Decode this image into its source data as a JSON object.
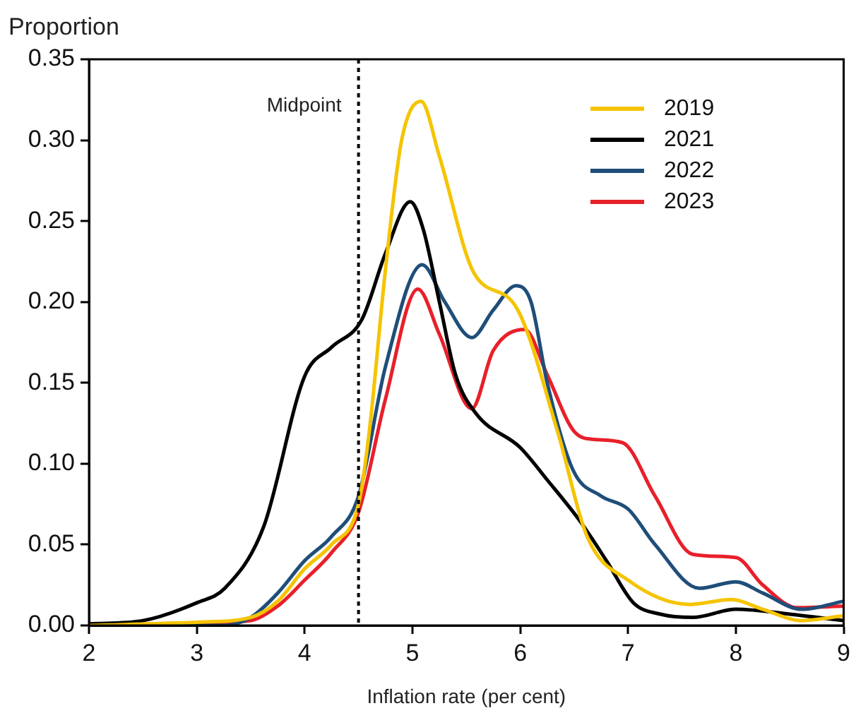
{
  "chart_data": {
    "type": "line",
    "ylabel": "Proportion",
    "xlabel": "Inflation rate (per cent)",
    "xlim": [
      2,
      9
    ],
    "xticks": [
      2,
      3,
      4,
      5,
      6,
      7,
      8,
      9
    ],
    "ylim": [
      0,
      0.35
    ],
    "yticks": [
      {
        "value": 0,
        "label": "0.00"
      },
      {
        "value": 0.05,
        "label": "0.05"
      },
      {
        "value": 0.1,
        "label": "0.10"
      },
      {
        "value": 0.15,
        "label": "0.15"
      },
      {
        "value": 0.2,
        "label": "0.20"
      },
      {
        "value": 0.25,
        "label": "0.25"
      },
      {
        "value": 0.3,
        "label": "0.30"
      },
      {
        "value": 0.35,
        "label": "0.35"
      }
    ],
    "grid": false,
    "legend": "top right",
    "marker": "none",
    "line_style": "solid",
    "ref_lines": [
      {
        "axis": "x",
        "value": 4.5,
        "label": "Midpoint",
        "color": "#000000",
        "line_style": "dotted"
      }
    ],
    "series": [
      {
        "name": "2019",
        "color": "#f5c400",
        "x": [
          2,
          3,
          3.5,
          3.75,
          4,
          4.25,
          4.5,
          4.6,
          4.75,
          4.9,
          5.08,
          5.25,
          5.57,
          5.96,
          6.35,
          6.62,
          7,
          7.57,
          7.96,
          8.25,
          8.61,
          9
        ],
        "values": [
          0,
          0.002,
          0.005,
          0.015,
          0.035,
          0.05,
          0.075,
          0.12,
          0.22,
          0.3,
          0.324,
          0.29,
          0.218,
          0.197,
          0.119,
          0.055,
          0.028,
          0.013,
          0.016,
          0.01,
          0.003,
          0.006
        ]
      },
      {
        "name": "2021",
        "color": "#000000",
        "x": [
          2,
          2.5,
          3,
          3.26,
          3.62,
          4,
          4.25,
          4.53,
          4.75,
          4.98,
          5.1,
          5.25,
          5.4,
          5.59,
          6,
          6.25,
          6.56,
          6.8,
          7.05,
          7.3,
          7.6,
          8,
          8.5,
          9
        ],
        "values": [
          0.001,
          0.003,
          0.014,
          0.023,
          0.061,
          0.154,
          0.172,
          0.189,
          0.23,
          0.262,
          0.245,
          0.2,
          0.155,
          0.131,
          0.11,
          0.09,
          0.064,
          0.04,
          0.014,
          0.007,
          0.005,
          0.01,
          0.007,
          0.003
        ]
      },
      {
        "name": "2022",
        "color": "#1f4e79",
        "x": [
          2,
          3.25,
          3.5,
          3.75,
          4,
          4.25,
          4.5,
          4.75,
          5.09,
          5.3,
          5.55,
          5.75,
          5.96,
          6.1,
          6.25,
          6.49,
          6.75,
          7,
          7.25,
          7.66,
          8,
          8.25,
          8.61,
          9
        ],
        "values": [
          0,
          0,
          0.005,
          0.02,
          0.04,
          0.055,
          0.08,
          0.16,
          0.223,
          0.2,
          0.178,
          0.195,
          0.21,
          0.2,
          0.15,
          0.096,
          0.08,
          0.072,
          0.05,
          0.023,
          0.027,
          0.02,
          0.01,
          0.015
        ]
      },
      {
        "name": "2023",
        "color": "#e8202a",
        "x": [
          2,
          3.25,
          3.5,
          3.75,
          4,
          4.25,
          4.5,
          4.75,
          5.05,
          5.25,
          5.55,
          5.75,
          6.04,
          6.25,
          6.5,
          6.69,
          6.95,
          7.25,
          7.6,
          8,
          8.25,
          8.57,
          9
        ],
        "values": [
          0,
          0.002,
          0.003,
          0.012,
          0.028,
          0.045,
          0.07,
          0.14,
          0.208,
          0.18,
          0.134,
          0.17,
          0.183,
          0.155,
          0.12,
          0.115,
          0.113,
          0.08,
          0.044,
          0.042,
          0.025,
          0.011,
          0.012
        ]
      }
    ]
  }
}
